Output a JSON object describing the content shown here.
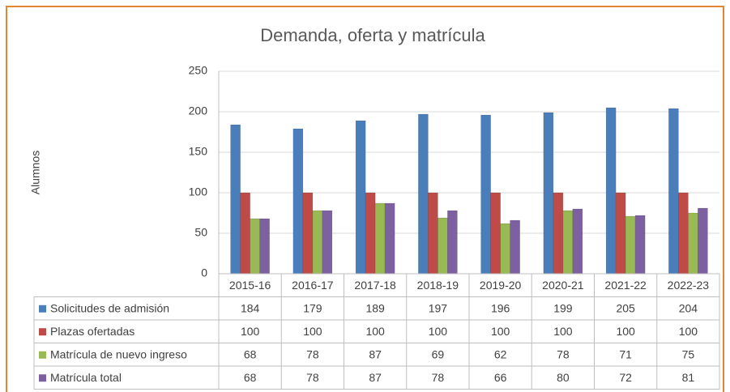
{
  "chart_data": {
    "type": "bar",
    "title": "Demanda, oferta y matrícula",
    "y_label": "Alumnos",
    "categories": [
      "2015-16",
      "2016-17",
      "2017-18",
      "2018-19",
      "2019-20",
      "2020-21",
      "2021-22",
      "2022-23"
    ],
    "series": [
      {
        "name": "Solicitudes de admisión",
        "color": "#4a7ebb",
        "values": [
          184,
          179,
          189,
          197,
          196,
          199,
          205,
          204
        ]
      },
      {
        "name": "Plazas ofertadas",
        "color": "#be4b48",
        "values": [
          100,
          100,
          100,
          100,
          100,
          100,
          100,
          100
        ]
      },
      {
        "name": "Matrícula de nuevo ingreso",
        "color": "#98b954",
        "values": [
          68,
          78,
          87,
          69,
          62,
          78,
          71,
          75
        ]
      },
      {
        "name": "Matrícula total",
        "color": "#7d60a0",
        "values": [
          68,
          78,
          87,
          78,
          66,
          80,
          72,
          81
        ]
      }
    ],
    "ylim": [
      0,
      250
    ],
    "yticks": [
      0,
      50,
      100,
      150,
      200,
      250
    ],
    "grid": true,
    "legend": "table"
  }
}
